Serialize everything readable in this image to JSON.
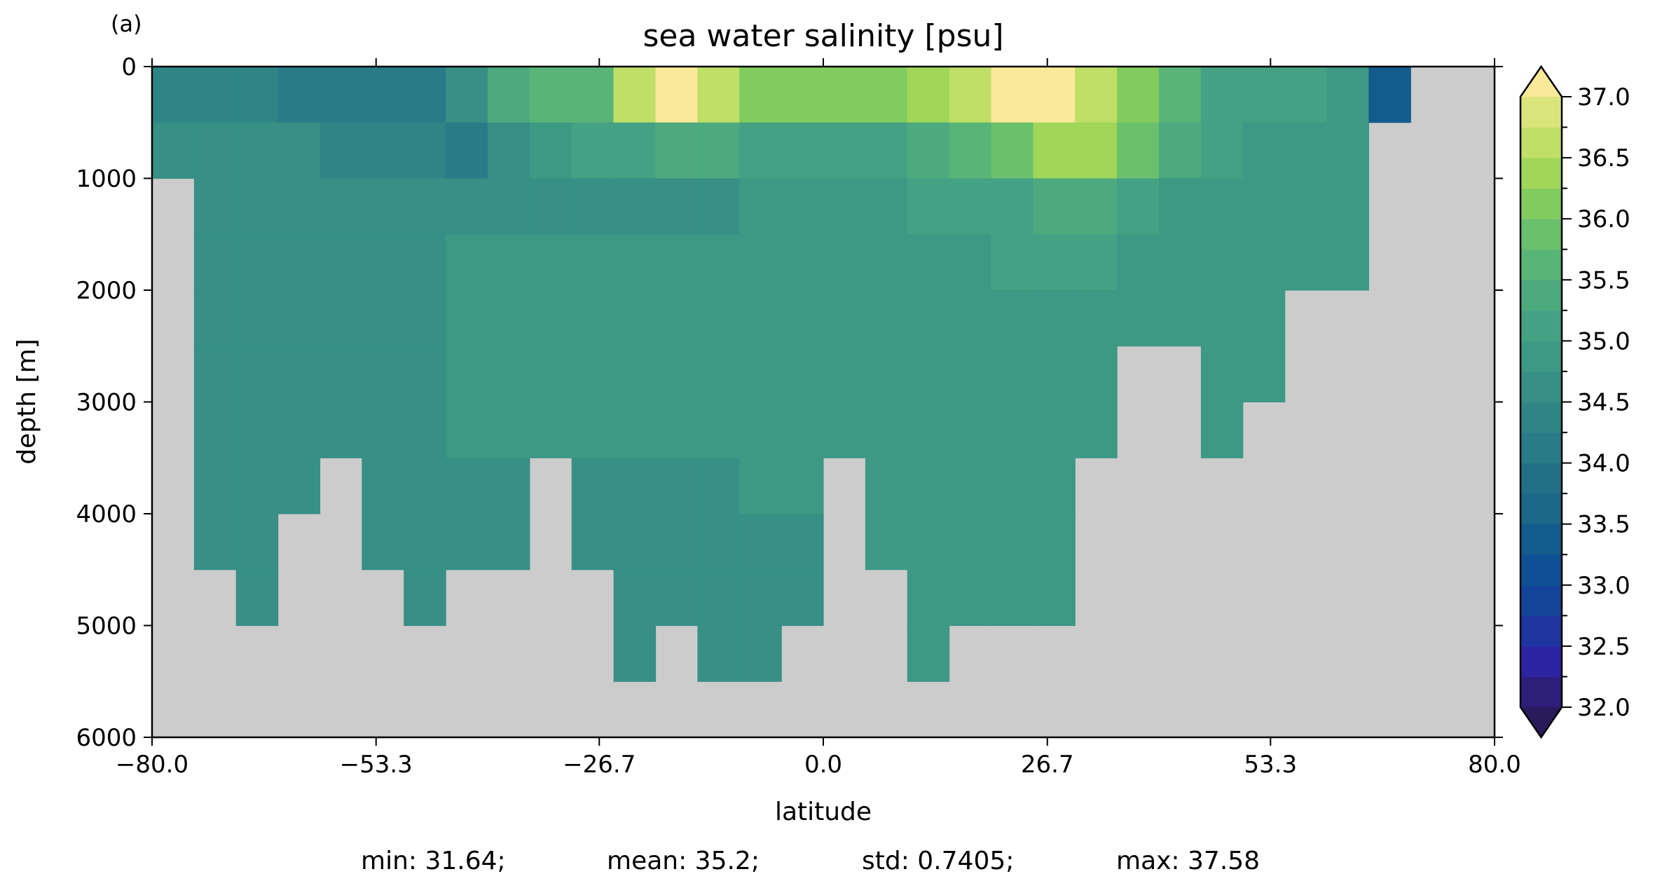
{
  "panel_label": "(a)",
  "stats": {
    "min": "min: 31.64;",
    "mean": "mean: 35.2;",
    "std": "std: 0.7405;",
    "max": "max: 37.58"
  },
  "chart_data": {
    "type": "heatmap",
    "title": "sea water salinity [psu]",
    "xlabel": "latitude",
    "ylabel": "depth [m]",
    "xlim": [
      -80,
      80
    ],
    "ylim": [
      6000,
      0
    ],
    "xticks": [
      "−80.0",
      "−53.3",
      "−26.7",
      "0.0",
      "26.7",
      "53.3",
      "80.0"
    ],
    "xtick_values": [
      -80,
      -53.3,
      -26.7,
      0,
      26.7,
      53.3,
      80
    ],
    "yticks": [
      "0",
      "1000",
      "2000",
      "3000",
      "4000",
      "5000",
      "6000"
    ],
    "ytick_values": [
      0,
      1000,
      2000,
      3000,
      4000,
      5000,
      6000
    ],
    "land_color": "#cccccc",
    "lat_bin_width": 5,
    "depth_bin_height": 500,
    "lat_bin_starts": [
      -80,
      -75,
      -70,
      -65,
      -60,
      -55,
      -50,
      -45,
      -40,
      -35,
      -30,
      -25,
      -20,
      -15,
      -10,
      -5,
      0,
      5,
      10,
      15,
      20,
      25,
      30,
      35,
      40,
      45,
      50,
      55,
      60,
      65,
      70,
      75
    ],
    "salinity_profiles": [
      [
        34.3,
        34.6
      ],
      [
        34.4,
        34.6,
        34.65,
        34.7,
        34.7,
        34.7,
        34.7,
        34.7,
        34.7
      ],
      [
        34.3,
        34.6,
        34.65,
        34.7,
        34.7,
        34.7,
        34.7,
        34.7,
        34.7,
        34.7
      ],
      [
        34.1,
        34.5,
        34.65,
        34.7,
        34.7,
        34.7,
        34.7,
        34.7
      ],
      [
        34.0,
        34.3,
        34.6,
        34.7,
        34.7,
        34.7,
        34.7
      ],
      [
        34.0,
        34.3,
        34.6,
        34.7,
        34.7,
        34.7,
        34.7,
        34.7,
        34.7
      ],
      [
        34.2,
        34.3,
        34.6,
        34.7,
        34.7,
        34.7,
        34.7,
        34.7,
        34.7,
        34.7
      ],
      [
        34.6,
        34.2,
        34.5,
        34.8,
        34.85,
        34.8,
        34.75,
        34.7,
        34.7
      ],
      [
        35.3,
        34.6,
        34.6,
        34.8,
        34.85,
        34.8,
        34.75,
        34.7,
        34.7
      ],
      [
        35.6,
        34.8,
        34.6,
        34.9,
        34.9,
        34.85,
        34.8
      ],
      [
        35.7,
        35.2,
        34.7,
        34.9,
        34.95,
        34.9,
        34.75,
        34.7,
        34.7
      ],
      [
        36.6,
        35.2,
        34.7,
        34.95,
        34.95,
        34.9,
        34.75,
        34.7,
        34.7,
        34.7,
        34.7
      ],
      [
        37.0,
        35.3,
        34.7,
        34.95,
        34.95,
        34.9,
        34.75,
        34.7,
        34.7,
        34.7
      ],
      [
        36.6,
        35.3,
        34.7,
        34.95,
        34.95,
        34.9,
        34.75,
        34.7,
        34.7,
        34.7,
        34.7
      ],
      [
        36.2,
        35.1,
        34.75,
        34.95,
        34.95,
        34.95,
        34.8,
        34.75,
        34.7,
        34.7,
        34.7
      ],
      [
        36.0,
        35.0,
        34.8,
        34.95,
        34.95,
        34.95,
        34.8,
        34.75,
        34.7,
        34.7
      ],
      [
        36.1,
        35.1,
        34.85,
        34.95,
        34.95,
        34.95,
        34.8
      ],
      [
        36.0,
        35.2,
        34.95,
        34.95,
        34.95,
        34.95,
        34.85,
        34.8,
        34.8
      ],
      [
        36.3,
        35.3,
        35.0,
        34.95,
        34.95,
        34.95,
        34.85,
        34.85,
        34.85,
        34.85,
        34.85
      ],
      [
        36.6,
        35.6,
        35.1,
        34.97,
        34.95,
        34.95,
        34.9,
        34.9,
        34.9,
        34.9
      ],
      [
        37.1,
        35.9,
        35.2,
        35.0,
        34.97,
        34.95,
        34.9,
        34.9,
        34.9,
        34.9
      ],
      [
        37.0,
        36.3,
        35.3,
        35.0,
        34.97,
        34.95,
        34.9,
        34.9,
        34.9,
        34.9
      ],
      [
        36.5,
        36.3,
        35.3,
        35.0,
        34.97,
        34.95,
        34.9
      ],
      [
        36.0,
        35.8,
        35.0,
        34.97,
        34.95
      ],
      [
        35.7,
        35.3,
        34.9,
        34.97,
        34.95
      ],
      [
        35.2,
        35.0,
        34.8,
        34.95,
        34.95,
        34.92,
        34.9
      ],
      [
        35.0,
        34.95,
        34.9,
        34.95,
        34.95,
        34.9
      ],
      [
        35.0,
        34.95,
        34.9,
        34.92
      ],
      [
        34.9,
        34.95,
        34.92,
        34.92
      ],
      [
        33.3
      ],
      [],
      []
    ],
    "colorbar": {
      "min": 32.0,
      "max": 37.0,
      "step": 0.25,
      "extend": "both",
      "ticks": [
        "32.0",
        "32.5",
        "33.0",
        "33.5",
        "34.0",
        "34.5",
        "35.0",
        "35.5",
        "36.0",
        "36.5",
        "37.0"
      ],
      "tick_values": [
        32.0,
        32.5,
        33.0,
        33.5,
        34.0,
        34.5,
        35.0,
        35.5,
        36.0,
        36.5,
        37.0
      ],
      "under_color": "#291a5c",
      "over_color": "#fbe99a",
      "colors": [
        "#2d1e7a",
        "#2c23a0",
        "#1f35a0",
        "#13449a",
        "#0f4f94",
        "#145b8d",
        "#1c6788",
        "#227086",
        "#287b87",
        "#2f8586",
        "#378f85",
        "#3d9884",
        "#45a183",
        "#4daa7f",
        "#59b577",
        "#6ac06c",
        "#82cb5f",
        "#a0d65a",
        "#bfdf66",
        "#dbe47a"
      ]
    }
  }
}
